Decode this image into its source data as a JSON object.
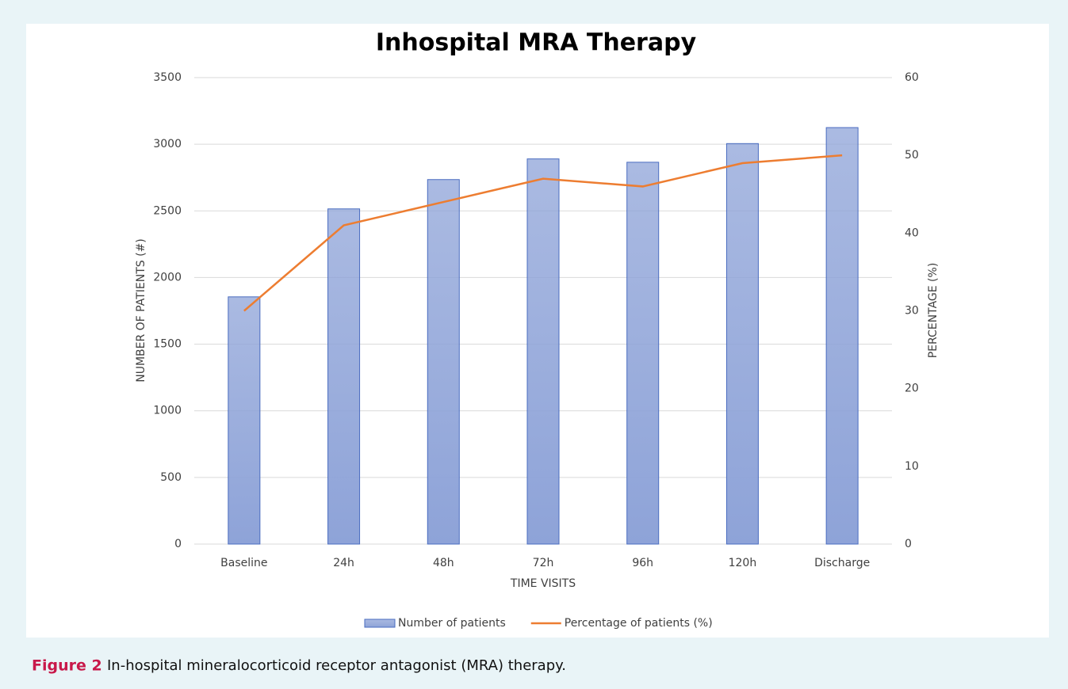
{
  "chart_data": {
    "type": "bar_line",
    "title": "Inhospital MRA Therapy",
    "x_label": "TIME VISITS",
    "y_label": "NUMBER OF PATIENTS (#)",
    "y2_label": "PERCENTAGE (%)",
    "categories": [
      "Baseline",
      "24h",
      "48h",
      "72h",
      "96h",
      "120h",
      "Discharge"
    ],
    "series": [
      {
        "name": "Number of patients",
        "type": "bar",
        "color": "#8ea3d8",
        "values": [
          1855,
          2515,
          2735,
          2890,
          2865,
          3005,
          3125
        ]
      },
      {
        "name": "Percentage of patients (%)",
        "type": "line",
        "axis": "y2",
        "color": "#ed7d31",
        "values": [
          30,
          41,
          44,
          47,
          46,
          49,
          50
        ]
      }
    ],
    "ylim": [
      0,
      3500
    ],
    "yticks": [
      0,
      500,
      1000,
      1500,
      2000,
      2500,
      3000,
      3500
    ],
    "y2lim": [
      0,
      60
    ],
    "y2ticks": [
      0,
      10,
      20,
      30,
      40,
      50,
      60
    ],
    "grid": true,
    "legend": "bottom"
  },
  "caption": {
    "label": "Figure 2",
    "text": "In-hospital mineralocorticoid receptor antagonist (MRA) therapy."
  }
}
